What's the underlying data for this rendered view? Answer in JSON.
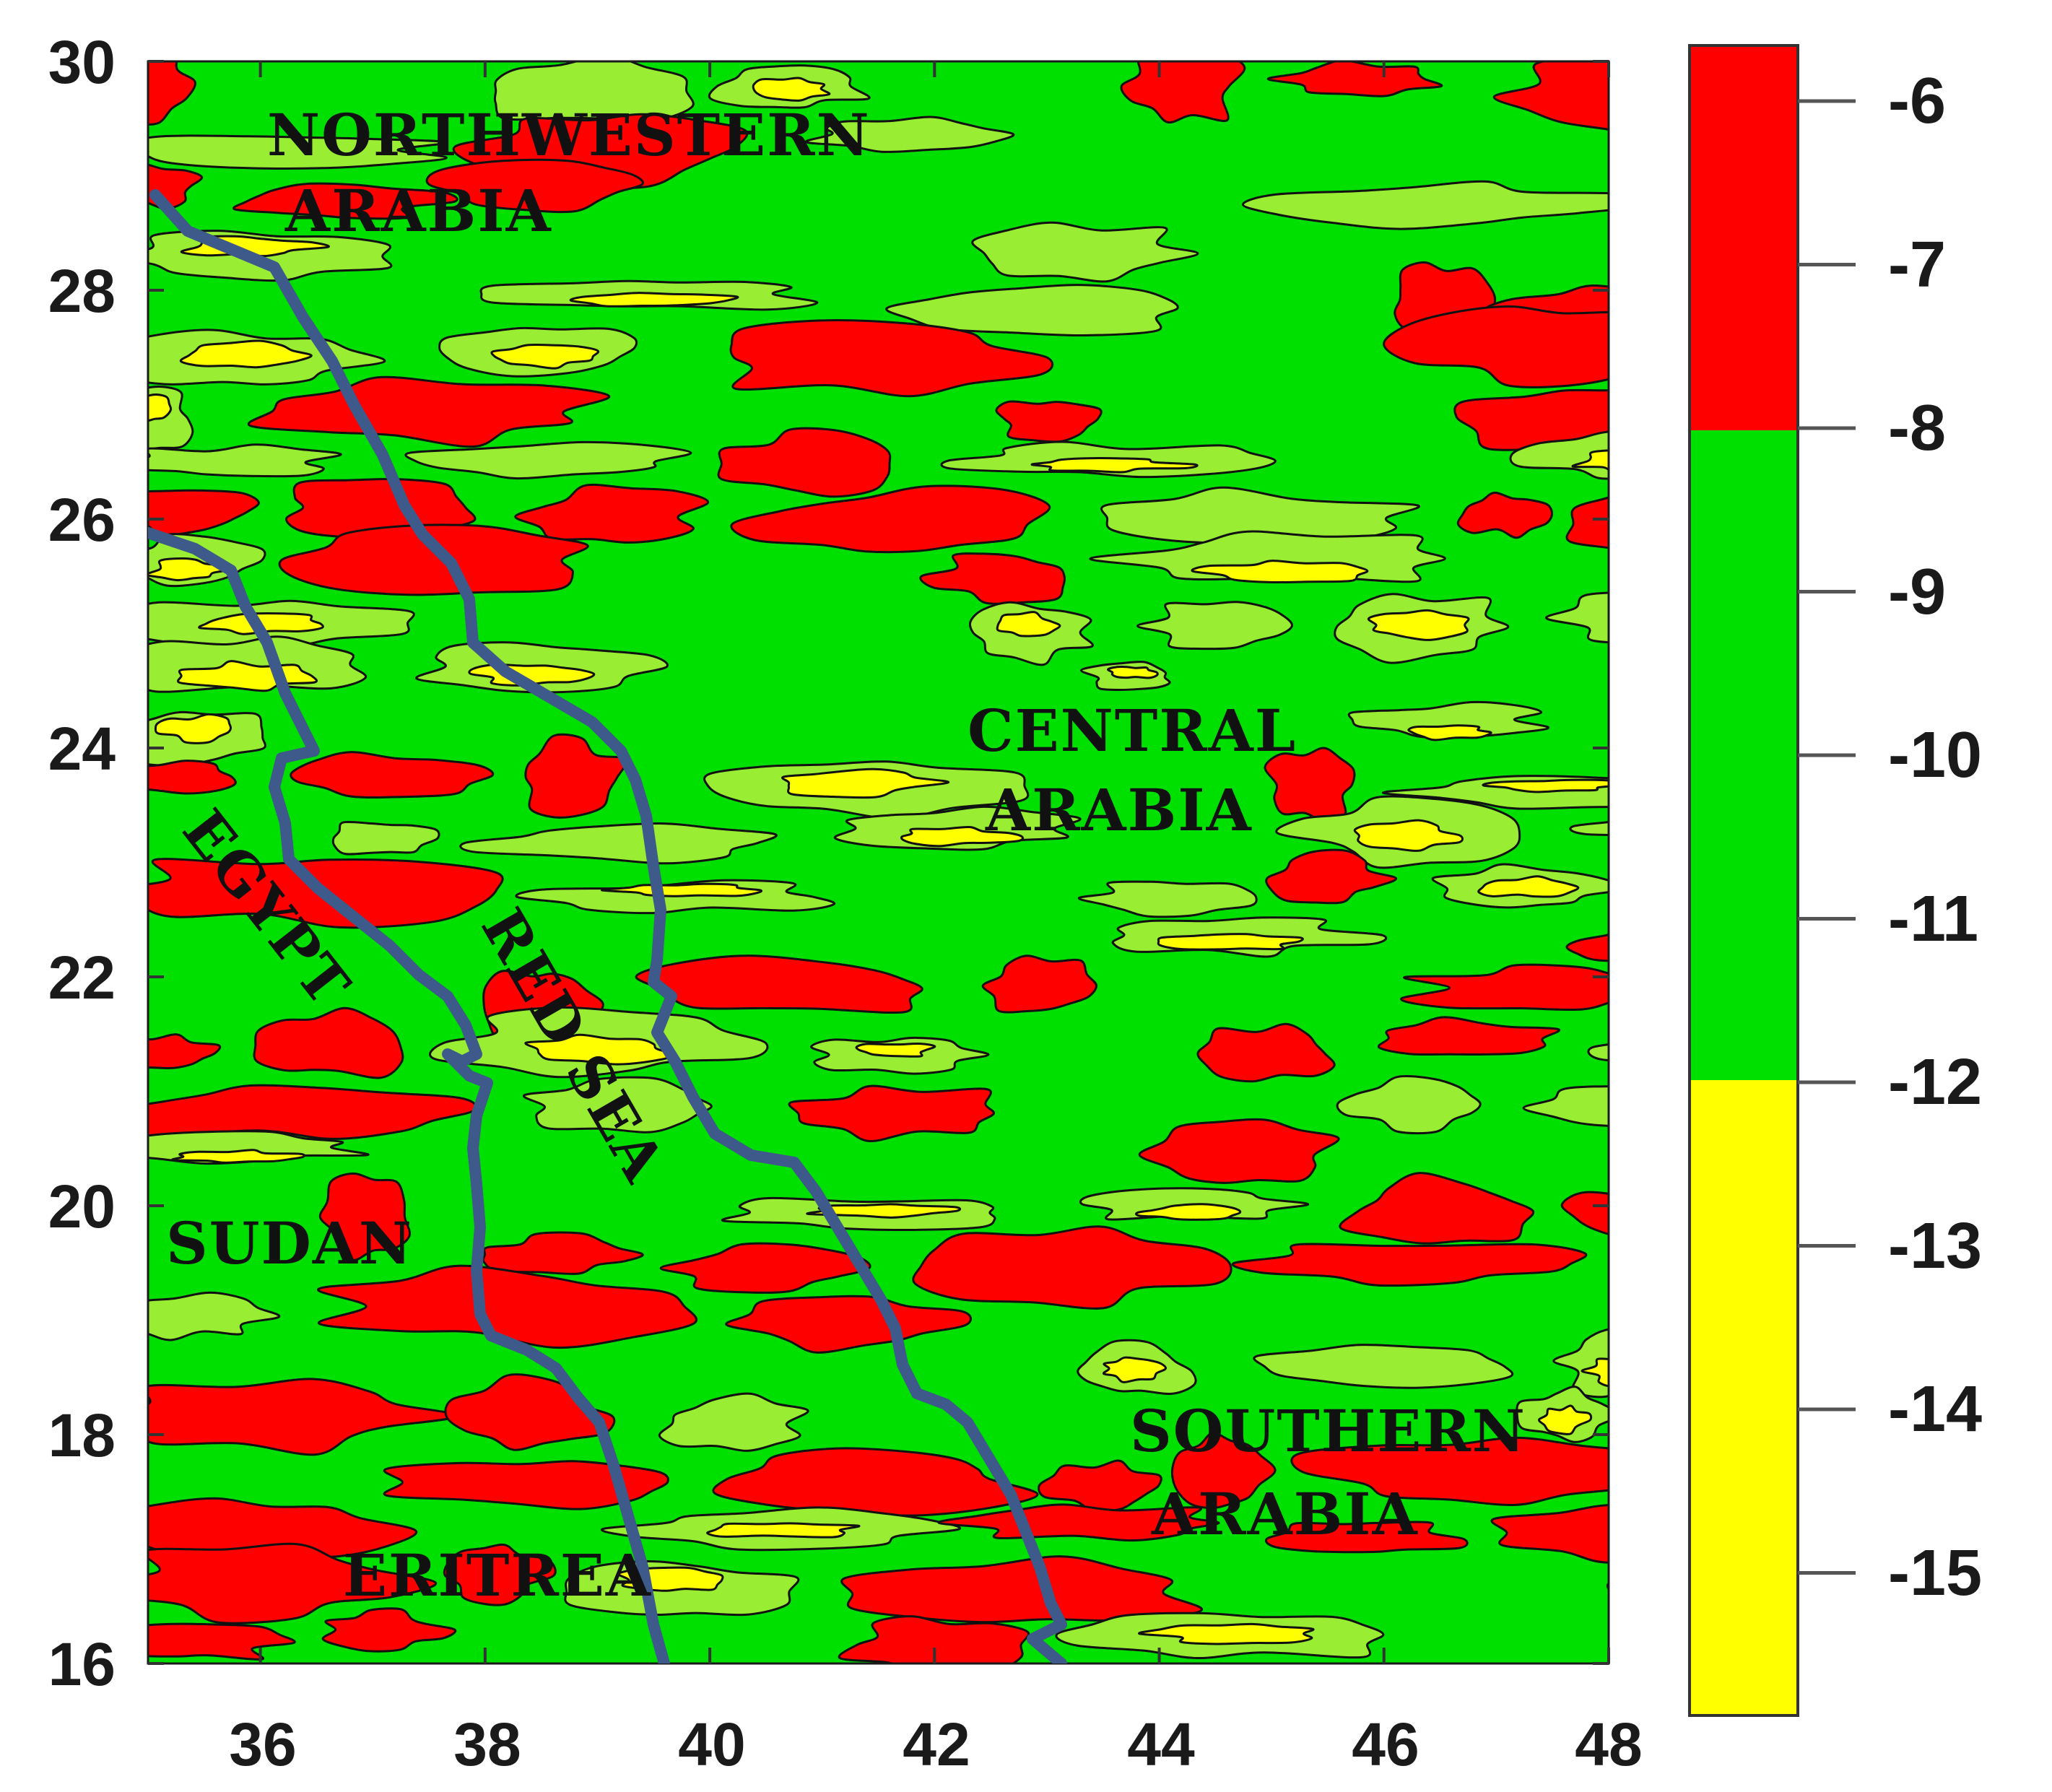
{
  "map": {
    "x_ticks": [
      "36",
      "38",
      "40",
      "42",
      "44",
      "46",
      "48"
    ],
    "y_ticks": [
      "16",
      "18",
      "20",
      "22",
      "24",
      "26",
      "28",
      "30"
    ],
    "x_range": [
      35,
      48
    ],
    "y_range": [
      16,
      30
    ],
    "colors": {
      "high": "#ff0000",
      "mid": "#00e000",
      "low": "#ffff00",
      "transition": "#99ee33",
      "contour": "#111111",
      "coast": "#3d5a8a"
    }
  },
  "regions": {
    "nw1": "NORTHWESTERN",
    "nw2": "ARABIA",
    "central1": "CENTRAL",
    "central2": "ARABIA",
    "southern1": "SOUTHERN",
    "southern2": "ARABIA",
    "egypt": "EGYPT",
    "redsea": "RED SEA",
    "sudan": "SUDAN",
    "eritrea": "ERITREA"
  },
  "legend": {
    "labels": [
      "-6",
      "-7",
      "-8",
      "-9",
      "-10",
      "-11",
      "-12",
      "-13",
      "-14",
      "-15"
    ],
    "bands": [
      {
        "range": "-6 to -8",
        "color": "#ff0000"
      },
      {
        "range": "-8 to -12",
        "color": "#00e000"
      },
      {
        "range": "-12 to -15",
        "color": "#ffff00"
      }
    ]
  }
}
